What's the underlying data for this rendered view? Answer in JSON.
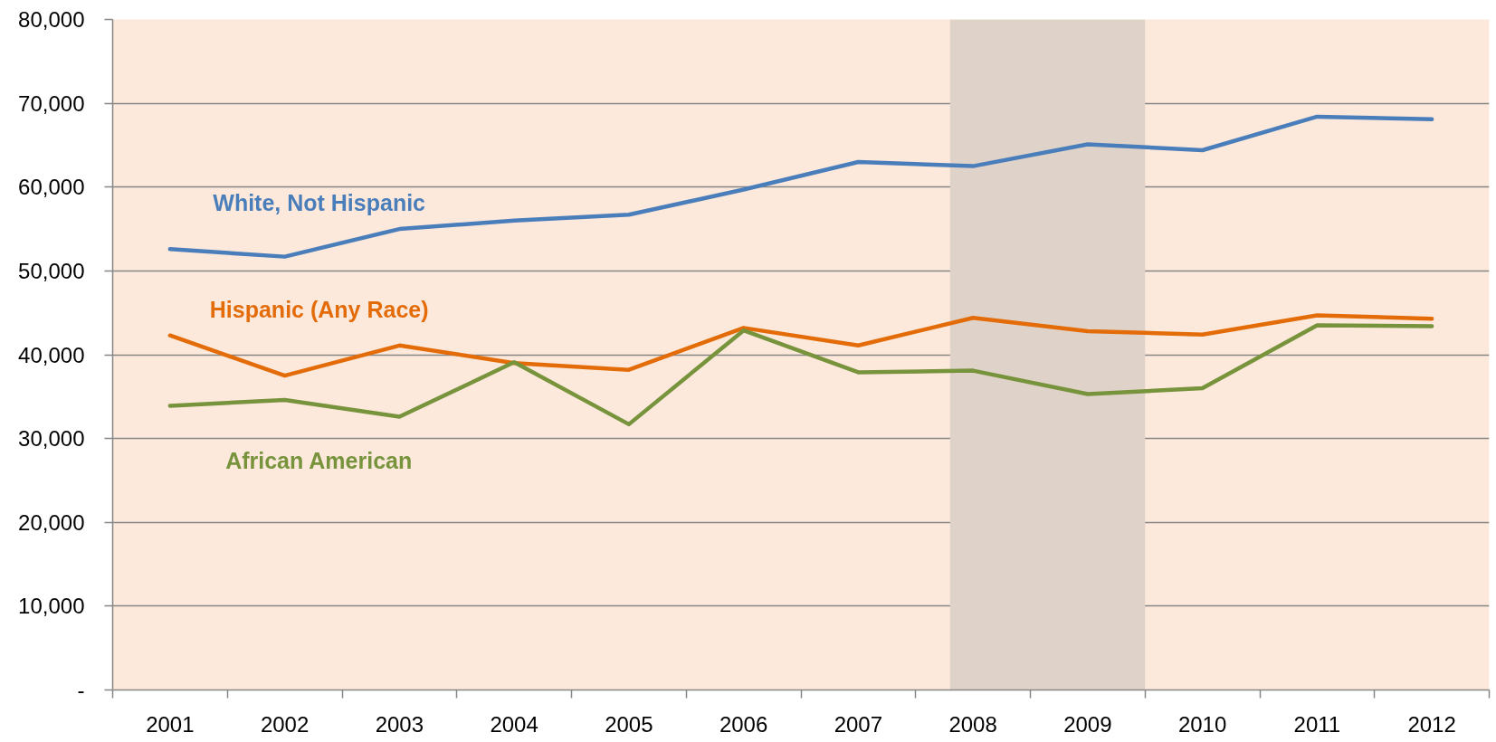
{
  "chart_data": {
    "type": "line",
    "x": [
      2001,
      2002,
      2003,
      2004,
      2005,
      2006,
      2007,
      2008,
      2009,
      2010,
      2011,
      2012
    ],
    "xlim": [
      2000.5,
      2012.5
    ],
    "xticks": [
      2001,
      2002,
      2003,
      2004,
      2005,
      2006,
      2007,
      2008,
      2009,
      2010,
      2011,
      2012
    ],
    "ylim": [
      0,
      80000
    ],
    "yticks": [
      {
        "value": 0,
        "label": "-"
      },
      {
        "value": 10000,
        "label": "10,000"
      },
      {
        "value": 20000,
        "label": "20,000"
      },
      {
        "value": 30000,
        "label": "30,000"
      },
      {
        "value": 40000,
        "label": "40,000"
      },
      {
        "value": 50000,
        "label": "50,000"
      },
      {
        "value": 60000,
        "label": "60,000"
      },
      {
        "value": 70000,
        "label": "70,000"
      },
      {
        "value": 80000,
        "label": "80,000"
      }
    ],
    "grid": "y",
    "line_style": "solid",
    "bands": [
      {
        "axis": "x",
        "from": 2007.8,
        "to": 2009.5,
        "color": "#dfd3c9"
      }
    ],
    "series": [
      {
        "name": "White, Not Hispanic",
        "color": "#4a7ebb",
        "values": [
          52600,
          51700,
          55000,
          56000,
          56700,
          59700,
          63000,
          62500,
          65100,
          64400,
          68400,
          68100
        ]
      },
      {
        "name": "Hispanic (Any Race)",
        "color": "#e36c09",
        "values": [
          42300,
          37500,
          41100,
          39000,
          38200,
          43200,
          41100,
          44400,
          42800,
          42400,
          44700,
          44300
        ]
      },
      {
        "name": "African American",
        "color": "#77933c",
        "values": [
          33900,
          34600,
          32600,
          39100,
          31700,
          42900,
          37900,
          38100,
          35300,
          36000,
          43500,
          43400
        ]
      }
    ]
  }
}
